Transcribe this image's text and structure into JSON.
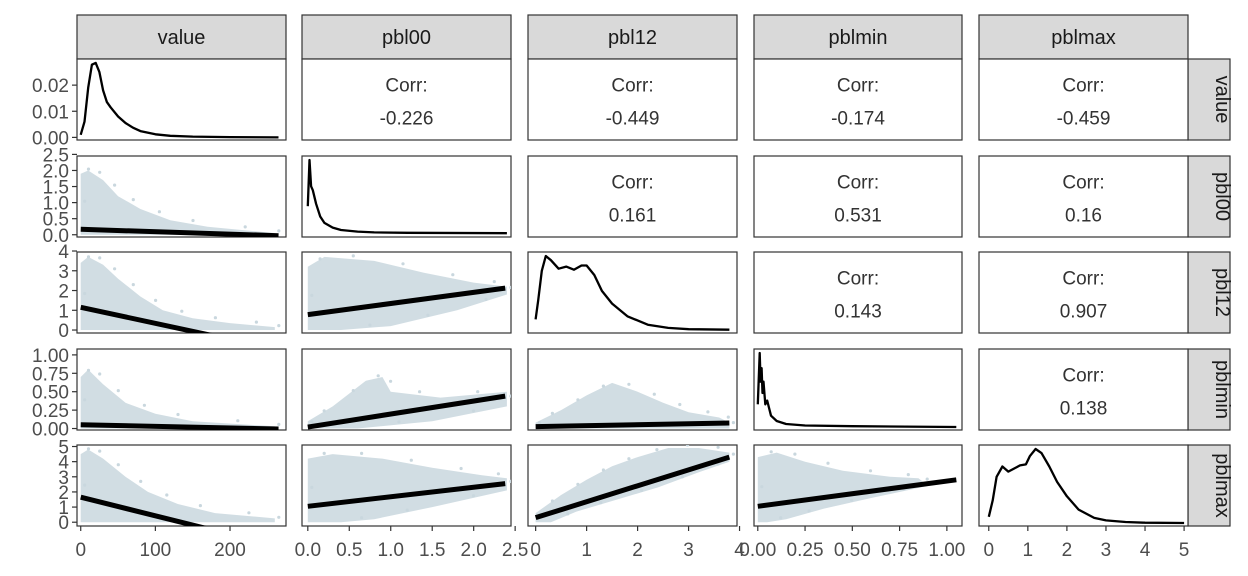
{
  "variables": [
    "value",
    "pbl00",
    "pbl12",
    "pblmin",
    "pblmax"
  ],
  "colors": {
    "scatter": "#c9d7de",
    "line": "#000000",
    "strip": "#d9d9d9",
    "frame": "#333333"
  },
  "corr_label": "Corr:",
  "chart_data": {
    "type": "scatter",
    "title": "",
    "axes": {
      "value": {
        "range": [
          -5,
          275
        ],
        "ticks": [
          0,
          100,
          200
        ],
        "tick_labels": [
          "0",
          "100",
          "200"
        ]
      },
      "pbl00": {
        "range": [
          -0.07,
          2.45
        ],
        "ticks": [
          0,
          0.5,
          1.0,
          1.5,
          2.0,
          2.5
        ],
        "tick_labels": [
          "0.0",
          "0.5",
          "1.0",
          "1.5",
          "2.0",
          "2.5"
        ]
      },
      "pbl12": {
        "range": [
          -0.15,
          3.95
        ],
        "ticks": [
          0,
          1,
          2,
          3,
          4
        ],
        "tick_labels": [
          "0",
          "1",
          "2",
          "3",
          "4"
        ]
      },
      "pblmin": {
        "range": [
          -0.02,
          1.08
        ],
        "ticks": [
          0,
          0.25,
          0.5,
          0.75,
          1.0
        ],
        "tick_labels": [
          "0.00",
          "0.25",
          "0.50",
          "0.75",
          "1.00"
        ]
      },
      "pblmax": {
        "range": [
          -0.25,
          5.1
        ],
        "ticks": [
          0,
          1,
          2,
          3,
          4,
          5
        ],
        "tick_labels": [
          "0",
          "1",
          "2",
          "3",
          "4",
          "5"
        ]
      }
    },
    "density_axis": {
      "range": [
        -0.001,
        0.03
      ],
      "ticks": [
        0,
        0.01,
        0.02
      ],
      "tick_labels": [
        "0.00",
        "0.01",
        "0.02"
      ]
    },
    "correlations": [
      {
        "row": "value",
        "col": "pbl00",
        "value": "-0.226"
      },
      {
        "row": "value",
        "col": "pbl12",
        "value": "-0.449"
      },
      {
        "row": "value",
        "col": "pblmin",
        "value": "-0.174"
      },
      {
        "row": "value",
        "col": "pblmax",
        "value": "-0.459"
      },
      {
        "row": "pbl00",
        "col": "pbl12",
        "value": "0.161"
      },
      {
        "row": "pbl00",
        "col": "pblmin",
        "value": "0.531"
      },
      {
        "row": "pbl00",
        "col": "pblmax",
        "value": "0.16"
      },
      {
        "row": "pbl12",
        "col": "pblmin",
        "value": "0.143"
      },
      {
        "row": "pbl12",
        "col": "pblmax",
        "value": "0.907"
      },
      {
        "row": "pblmin",
        "col": "pblmax",
        "value": "0.138"
      }
    ],
    "densities": {
      "value": [
        [
          0,
          0.001
        ],
        [
          5,
          0.006
        ],
        [
          10,
          0.019
        ],
        [
          15,
          0.0278
        ],
        [
          20,
          0.0285
        ],
        [
          25,
          0.025
        ],
        [
          30,
          0.018
        ],
        [
          35,
          0.0135
        ],
        [
          40,
          0.0115
        ],
        [
          50,
          0.008
        ],
        [
          60,
          0.0055
        ],
        [
          70,
          0.0037
        ],
        [
          80,
          0.0024
        ],
        [
          100,
          0.0012
        ],
        [
          120,
          0.0006
        ],
        [
          150,
          0.0003
        ],
        [
          200,
          0.0001
        ],
        [
          265,
          0
        ]
      ],
      "pbl00": [
        [
          0,
          0.35
        ],
        [
          0.02,
          0.93
        ],
        [
          0.04,
          0.6
        ],
        [
          0.06,
          0.55
        ],
        [
          0.1,
          0.38
        ],
        [
          0.15,
          0.22
        ],
        [
          0.2,
          0.14
        ],
        [
          0.3,
          0.08
        ],
        [
          0.4,
          0.05
        ],
        [
          0.6,
          0.03
        ],
        [
          0.8,
          0.02
        ],
        [
          1.2,
          0.015
        ],
        [
          2.4,
          0.01
        ]
      ],
      "pbl12": [
        [
          0,
          0.1
        ],
        [
          0.05,
          0.28
        ],
        [
          0.12,
          0.56
        ],
        [
          0.2,
          0.7
        ],
        [
          0.3,
          0.66
        ],
        [
          0.45,
          0.58
        ],
        [
          0.6,
          0.6
        ],
        [
          0.75,
          0.57
        ],
        [
          0.9,
          0.61
        ],
        [
          1.0,
          0.61
        ],
        [
          1.15,
          0.52
        ],
        [
          1.3,
          0.37
        ],
        [
          1.5,
          0.25
        ],
        [
          1.8,
          0.13
        ],
        [
          2.2,
          0.05
        ],
        [
          2.6,
          0.02
        ],
        [
          3.0,
          0.008
        ],
        [
          3.8,
          0.003
        ]
      ],
      "pblmin": [
        [
          0,
          0.3
        ],
        [
          0.01,
          0.98
        ],
        [
          0.015,
          0.6
        ],
        [
          0.02,
          0.78
        ],
        [
          0.025,
          0.45
        ],
        [
          0.03,
          0.6
        ],
        [
          0.04,
          0.3
        ],
        [
          0.05,
          0.35
        ],
        [
          0.07,
          0.15
        ],
        [
          0.1,
          0.08
        ],
        [
          0.15,
          0.04
        ],
        [
          0.25,
          0.02
        ],
        [
          0.5,
          0.01
        ],
        [
          1.05,
          0
        ]
      ],
      "pblmax": [
        [
          0,
          0.06
        ],
        [
          0.1,
          0.22
        ],
        [
          0.2,
          0.45
        ],
        [
          0.35,
          0.55
        ],
        [
          0.5,
          0.5
        ],
        [
          0.65,
          0.53
        ],
        [
          0.8,
          0.56
        ],
        [
          0.95,
          0.57
        ],
        [
          1.05,
          0.65
        ],
        [
          1.2,
          0.72
        ],
        [
          1.35,
          0.68
        ],
        [
          1.55,
          0.55
        ],
        [
          1.75,
          0.4
        ],
        [
          2.0,
          0.26
        ],
        [
          2.3,
          0.13
        ],
        [
          2.7,
          0.05
        ],
        [
          3.0,
          0.025
        ],
        [
          3.5,
          0.01
        ],
        [
          4.0,
          0.003
        ],
        [
          5.0,
          0
        ]
      ]
    },
    "fits": [
      {
        "x": "value",
        "y": "pbl00",
        "x0": 0,
        "y0": 0.17,
        "x1": 265,
        "y1": -0.03
      },
      {
        "x": "value",
        "y": "pbl12",
        "x0": 0,
        "y0": 1.15,
        "x1": 265,
        "y1": -1.0
      },
      {
        "x": "value",
        "y": "pblmin",
        "x0": 0,
        "y0": 0.052,
        "x1": 265,
        "y1": -0.006
      },
      {
        "x": "value",
        "y": "pblmax",
        "x0": 0,
        "y0": 1.65,
        "x1": 265,
        "y1": -1.6
      },
      {
        "x": "pbl00",
        "y": "pbl12",
        "x0": 0,
        "y0": 0.78,
        "x1": 2.38,
        "y1": 2.12
      },
      {
        "x": "pbl00",
        "y": "pblmin",
        "x0": 0,
        "y0": 0.02,
        "x1": 2.38,
        "y1": 0.44
      },
      {
        "x": "pbl00",
        "y": "pblmax",
        "x0": 0,
        "y0": 1.05,
        "x1": 2.38,
        "y1": 2.55
      },
      {
        "x": "pbl12",
        "y": "pblmin",
        "x0": 0,
        "y0": 0.025,
        "x1": 3.8,
        "y1": 0.075
      },
      {
        "x": "pbl12",
        "y": "pblmax",
        "x0": 0,
        "y0": 0.3,
        "x1": 3.8,
        "y1": 4.3
      },
      {
        "x": "pblmin",
        "y": "pblmax",
        "x0": 0,
        "y0": 1.05,
        "x1": 1.05,
        "y1": 2.8
      }
    ],
    "clouds": [
      {
        "x": "value",
        "y": "pbl00",
        "pts": [
          [
            0,
            0
          ],
          [
            0,
            1.9
          ],
          [
            10,
            2.0
          ],
          [
            30,
            1.7
          ],
          [
            50,
            1.2
          ],
          [
            80,
            0.8
          ],
          [
            120,
            0.45
          ],
          [
            170,
            0.25
          ],
          [
            260,
            0.05
          ],
          [
            260,
            0
          ]
        ]
      },
      {
        "x": "value",
        "y": "pbl12",
        "pts": [
          [
            0,
            0
          ],
          [
            0,
            3.4
          ],
          [
            10,
            3.7
          ],
          [
            30,
            3.3
          ],
          [
            50,
            2.6
          ],
          [
            80,
            1.7
          ],
          [
            110,
            1.0
          ],
          [
            150,
            0.6
          ],
          [
            200,
            0.35
          ],
          [
            260,
            0.15
          ],
          [
            260,
            0
          ]
        ]
      },
      {
        "x": "value",
        "y": "pblmin",
        "pts": [
          [
            0,
            0
          ],
          [
            0,
            0.7
          ],
          [
            10,
            0.8
          ],
          [
            30,
            0.6
          ],
          [
            60,
            0.35
          ],
          [
            100,
            0.2
          ],
          [
            150,
            0.1
          ],
          [
            260,
            0.03
          ],
          [
            260,
            0
          ]
        ]
      },
      {
        "x": "value",
        "y": "pblmax",
        "pts": [
          [
            0,
            0
          ],
          [
            0,
            4.5
          ],
          [
            10,
            4.8
          ],
          [
            30,
            4.2
          ],
          [
            60,
            3.0
          ],
          [
            90,
            2.0
          ],
          [
            130,
            1.2
          ],
          [
            180,
            0.6
          ],
          [
            260,
            0.25
          ],
          [
            260,
            0
          ]
        ]
      },
      {
        "x": "pbl00",
        "y": "pbl12",
        "pts": [
          [
            0,
            0
          ],
          [
            0,
            3.2
          ],
          [
            0.2,
            3.7
          ],
          [
            0.8,
            3.5
          ],
          [
            1.4,
            2.9
          ],
          [
            2.0,
            2.4
          ],
          [
            2.4,
            2.2
          ],
          [
            2.4,
            1.8
          ],
          [
            1.8,
            1.0
          ],
          [
            1.0,
            0.2
          ],
          [
            0.4,
            0
          ]
        ]
      },
      {
        "x": "pbl00",
        "y": "pblmin",
        "pts": [
          [
            0,
            0
          ],
          [
            0,
            0.1
          ],
          [
            0.3,
            0.3
          ],
          [
            0.7,
            0.65
          ],
          [
            0.9,
            0.7
          ],
          [
            1.0,
            0.5
          ],
          [
            1.6,
            0.42
          ],
          [
            2.4,
            0.5
          ],
          [
            2.4,
            0.3
          ],
          [
            1.5,
            0.1
          ],
          [
            0.6,
            0
          ]
        ]
      },
      {
        "x": "pbl00",
        "y": "pblmax",
        "pts": [
          [
            0,
            0
          ],
          [
            0,
            4.2
          ],
          [
            0.3,
            4.5
          ],
          [
            0.9,
            4.2
          ],
          [
            1.5,
            3.6
          ],
          [
            2.1,
            3.1
          ],
          [
            2.4,
            2.9
          ],
          [
            2.4,
            2.1
          ],
          [
            1.5,
            1.0
          ],
          [
            0.8,
            0.2
          ],
          [
            0.4,
            0
          ]
        ]
      },
      {
        "x": "pbl12",
        "y": "pblmin",
        "pts": [
          [
            0,
            0
          ],
          [
            0,
            0.08
          ],
          [
            0.5,
            0.25
          ],
          [
            1.0,
            0.45
          ],
          [
            1.5,
            0.62
          ],
          [
            2.0,
            0.5
          ],
          [
            2.5,
            0.35
          ],
          [
            3.0,
            0.22
          ],
          [
            3.6,
            0.15
          ],
          [
            3.8,
            0.08
          ],
          [
            3.8,
            0
          ],
          [
            0,
            0
          ]
        ]
      },
      {
        "x": "pbl12",
        "y": "pblmax",
        "pts": [
          [
            0,
            0
          ],
          [
            0,
            0.6
          ],
          [
            0.5,
            1.8
          ],
          [
            1.0,
            2.8
          ],
          [
            1.5,
            3.7
          ],
          [
            2.0,
            4.3
          ],
          [
            2.6,
            4.9
          ],
          [
            3.2,
            4.9
          ],
          [
            3.8,
            4.6
          ],
          [
            3.8,
            4.0
          ],
          [
            3.2,
            3.3
          ],
          [
            2.4,
            2.3
          ],
          [
            1.6,
            1.5
          ],
          [
            0.8,
            0.7
          ],
          [
            0.3,
            0
          ]
        ]
      },
      {
        "x": "pblmin",
        "y": "pblmax",
        "pts": [
          [
            0,
            0
          ],
          [
            0,
            4.3
          ],
          [
            0.1,
            4.6
          ],
          [
            0.25,
            4.0
          ],
          [
            0.45,
            3.4
          ],
          [
            0.7,
            3.0
          ],
          [
            0.85,
            2.9
          ],
          [
            0.9,
            2.4
          ],
          [
            0.6,
            1.6
          ],
          [
            0.35,
            0.9
          ],
          [
            0.15,
            0.2
          ],
          [
            0.05,
            0
          ]
        ]
      }
    ]
  }
}
